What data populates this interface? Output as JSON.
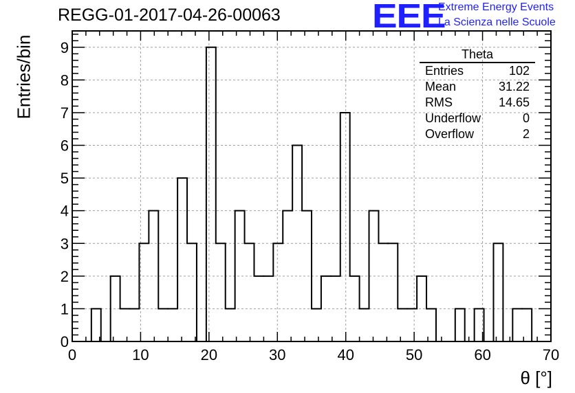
{
  "header": {
    "title": "REGG-01-2017-04-26-00063",
    "logo_text": "EEE",
    "logo_line1": "Extreme Energy Events",
    "logo_line2": "La Scienza nelle Scuole"
  },
  "stats_box": {
    "title": "Theta",
    "rows": [
      {
        "label": "Entries",
        "value": "102"
      },
      {
        "label": "Mean",
        "value": "31.22"
      },
      {
        "label": "RMS",
        "value": "14.65"
      },
      {
        "label": "Underflow",
        "value": "0"
      },
      {
        "label": "Overflow",
        "value": "2"
      }
    ]
  },
  "colors": {
    "line": "#000000",
    "grid": "#a0a0a0",
    "logo": "#1f1fff"
  },
  "chart_data": {
    "type": "bar",
    "style": "step-histogram",
    "xlabel": "θ [°]",
    "ylabel": "Entries/bin",
    "xlim": [
      0,
      70
    ],
    "ylim": [
      0,
      9.5
    ],
    "grid": true,
    "x_ticks": [
      0,
      10,
      20,
      30,
      40,
      50,
      60,
      70
    ],
    "y_ticks": [
      0,
      1,
      2,
      3,
      4,
      5,
      6,
      7,
      8,
      9
    ],
    "bin_start": 0,
    "bin_width": 1.4,
    "values": [
      0,
      0,
      1,
      0,
      2,
      1,
      1,
      3,
      4,
      1,
      1,
      5,
      3,
      0,
      9,
      3,
      1,
      4,
      3,
      2,
      2,
      3,
      4,
      6,
      4,
      1,
      2,
      2,
      7,
      2,
      1,
      4,
      3,
      3,
      1,
      1,
      2,
      1,
      0,
      0,
      1,
      0,
      1,
      0,
      3,
      0,
      1,
      1,
      0,
      0
    ]
  }
}
